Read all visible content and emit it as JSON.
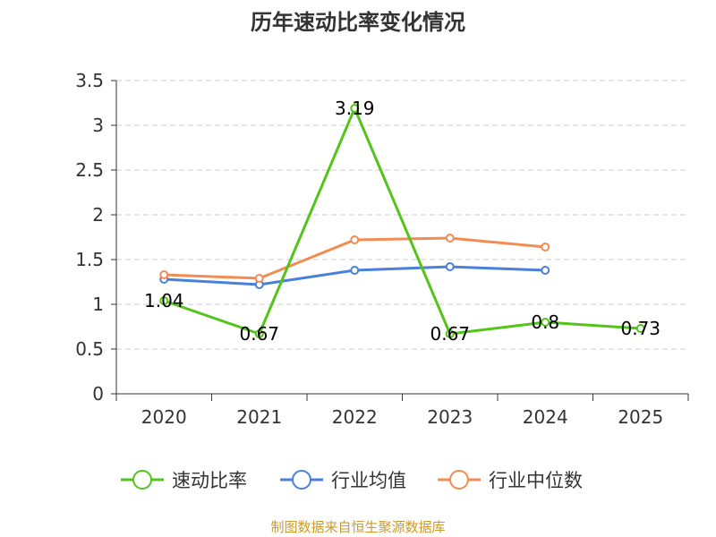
{
  "chart_data": {
    "type": "line",
    "title": "历年速动比率变化情况",
    "categories": [
      "2020",
      "2021",
      "2022",
      "2023",
      "2024",
      "2025"
    ],
    "ylim": [
      0,
      3.5
    ],
    "yticks": [
      "0",
      "0.5",
      "1",
      "1.5",
      "2",
      "2.5",
      "3",
      "3.5"
    ],
    "grid": true,
    "legend_position": "bottom",
    "series": [
      {
        "name": "速动比率",
        "color": "#52c41a",
        "values": [
          1.04,
          0.67,
          3.19,
          0.67,
          0.8,
          0.73
        ],
        "labels": [
          "1.04",
          "0.67",
          "3.19",
          "0.67",
          "0.8",
          "0.73"
        ]
      },
      {
        "name": "行业均值",
        "color": "#4a7fdb",
        "values": [
          1.28,
          1.22,
          1.38,
          1.42,
          1.38,
          null
        ]
      },
      {
        "name": "行业中位数",
        "color": "#f28c52",
        "values": [
          1.33,
          1.29,
          1.72,
          1.74,
          1.64,
          null
        ]
      }
    ],
    "source": "制图数据来自恒生聚源数据库"
  }
}
